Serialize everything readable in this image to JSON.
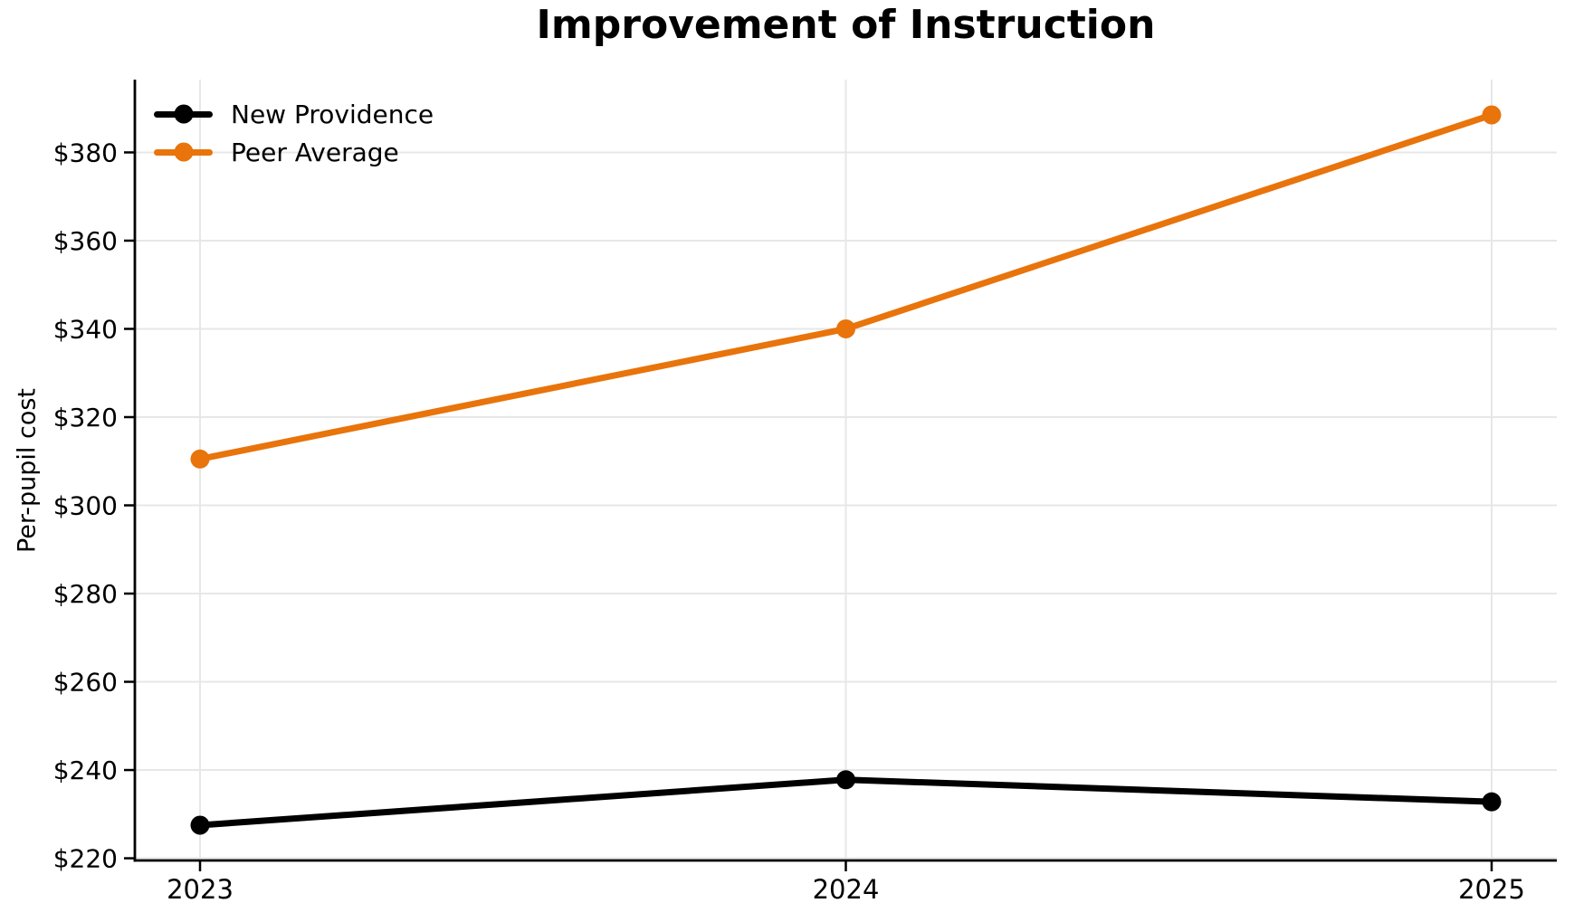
{
  "chart_data": {
    "type": "line",
    "title": "Improvement of Instruction",
    "xlabel": "",
    "ylabel": "Per-pupil cost",
    "categories": [
      "2023",
      "2024",
      "2025"
    ],
    "series": [
      {
        "name": "New Providence",
        "color": "#000000",
        "values": [
          227.5,
          237.8,
          232.8
        ]
      },
      {
        "name": "Peer Average",
        "color": "#e8740b",
        "values": [
          310.5,
          340.0,
          388.5
        ]
      }
    ],
    "yticks": [
      220,
      240,
      260,
      280,
      300,
      320,
      340,
      360,
      380
    ],
    "ytick_prefix": "$",
    "ylim": [
      219.5,
      396.5
    ],
    "grid": true,
    "legend_position": "upper-left"
  },
  "colors": {
    "background": "#ffffff",
    "grid": "#e7e7e7",
    "axis": "#000000",
    "text": "#000000"
  }
}
